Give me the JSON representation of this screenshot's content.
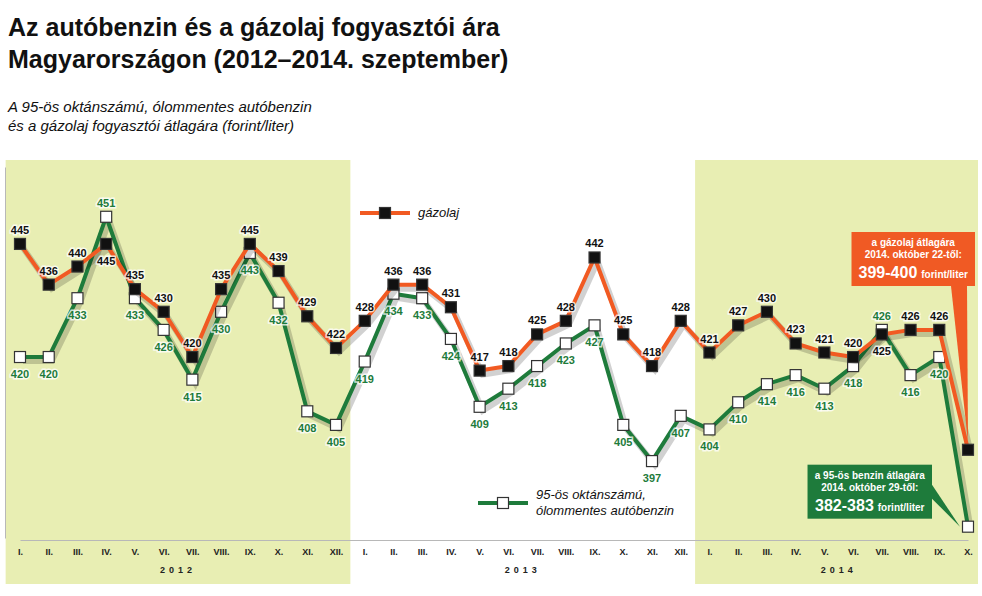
{
  "chart_data": {
    "type": "line",
    "title": [
      "Az autóbenzin és a gázolaj fogyasztói ára",
      "Magyarországon (2012–2014. szeptember)"
    ],
    "subtitle": [
      "A 95-ös oktánszámú, ólommentes autóbenzin",
      "és a gázolaj fogyasztói átlagára (forint/liter)"
    ],
    "categories": [
      "I.",
      "II.",
      "III.",
      "IV.",
      "V.",
      "VI.",
      "VII.",
      "VIII.",
      "IX.",
      "X.",
      "XI.",
      "XII.",
      "I.",
      "II.",
      "III.",
      "IV.",
      "V.",
      "VI.",
      "VII.",
      "VIII.",
      "IX.",
      "X.",
      "XI.",
      "XII.",
      "I.",
      "II.",
      "III.",
      "IV.",
      "V.",
      "VI.",
      "VII.",
      "VIII.",
      "IX.",
      "X."
    ],
    "groups": [
      "2012",
      "2013",
      "2014"
    ],
    "ylim": [
      380,
      462
    ],
    "tick_labels": "x",
    "data_labels": true,
    "legend": "inside",
    "series": [
      {
        "name": "gázolaj",
        "color": "#f15a22",
        "marker": "square",
        "values": [
          445,
          436,
          440,
          445,
          435,
          430,
          420,
          435,
          445,
          439,
          429,
          422,
          428,
          436,
          436,
          431,
          417,
          418,
          425,
          428,
          442,
          425,
          418,
          428,
          421,
          427,
          430,
          423,
          421,
          420,
          425,
          426,
          426,
          399.5
        ],
        "value_labels": [
          "445",
          "436",
          "440",
          "445",
          "435",
          "430",
          "420",
          "435",
          "445",
          "439",
          "429",
          "422",
          "428",
          "436",
          "436",
          "431",
          "417",
          "418",
          "425",
          "428",
          "442",
          "425",
          "418",
          "428",
          "421",
          "427",
          "430",
          "423",
          "421",
          "420",
          "425",
          "426",
          "426",
          null
        ]
      },
      {
        "name": "95-ös oktánszámú, ólommentes autóbenzin",
        "color": "#1e7b3b",
        "marker": "open-square",
        "values": [
          420,
          420,
          433,
          451,
          433,
          426,
          415,
          430,
          443,
          432,
          408,
          405,
          419,
          434,
          433,
          424,
          409,
          413,
          418,
          423,
          427,
          405,
          397,
          407,
          404,
          410,
          414,
          416,
          413,
          418,
          426,
          416,
          420,
          382.5
        ],
        "value_labels": [
          "420",
          "420",
          "433",
          "451",
          "433",
          "426",
          "415",
          "430",
          "443",
          "432",
          "408",
          "405",
          "419",
          "434",
          "433",
          "424",
          "409",
          "413",
          "418",
          "423",
          "427",
          "405",
          "397",
          "407",
          "404",
          "410",
          "414",
          "416",
          "413",
          "418",
          "426",
          "416",
          "420",
          null
        ]
      }
    ],
    "annotations": [
      {
        "lines": [
          "a gázolaj átlagára",
          "2014. október 22-től:"
        ],
        "price": "399-400",
        "unit": "forint/liter",
        "color": "#f05a24"
      },
      {
        "lines": [
          "a 95-ös benzin átlagára",
          "2014. október 29-től:"
        ],
        "price": "382-383",
        "unit": "forint/liter",
        "color": "#1e7b3b"
      }
    ]
  }
}
